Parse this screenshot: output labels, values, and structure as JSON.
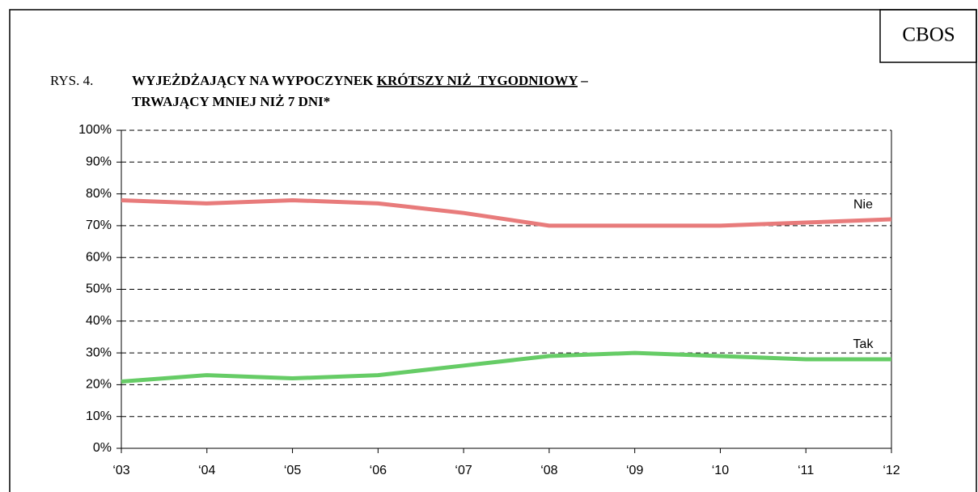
{
  "chart_data": {
    "type": "line",
    "badge": "CBOS",
    "figure_label": "RYS. 4.",
    "title_parts": [
      "WYJEŻDŻAJĄCY NA WYPOCZYNEK ",
      "KRÓTSZY NIŻ  TYGODNIOWY",
      " –"
    ],
    "title_line2": "TRWAJĄCY MNIEJ NIŻ 7 DNI*",
    "categories": [
      "‘03",
      "‘04",
      "‘05",
      "‘06",
      "‘07",
      "‘08",
      "‘09",
      "‘10",
      "‘11",
      "‘12"
    ],
    "series": [
      {
        "name": "Nie",
        "color": "#e87b7b",
        "values": [
          78,
          77,
          78,
          77,
          74,
          70,
          70,
          70,
          71,
          72
        ]
      },
      {
        "name": "Tak",
        "color": "#66cc66",
        "values": [
          21,
          23,
          22,
          23,
          26,
          29,
          30,
          29,
          28,
          28
        ]
      }
    ],
    "ylim": [
      0,
      100
    ],
    "yticks": [
      {
        "value": 0,
        "label": "0%"
      },
      {
        "value": 10,
        "label": "10%"
      },
      {
        "value": 20,
        "label": "20%"
      },
      {
        "value": 30,
        "label": "30%"
      },
      {
        "value": 40,
        "label": "40%"
      },
      {
        "value": 50,
        "label": "50%"
      },
      {
        "value": 60,
        "label": "60%"
      },
      {
        "value": 70,
        "label": "70%"
      },
      {
        "value": 80,
        "label": "80%"
      },
      {
        "value": 90,
        "label": "90%"
      },
      {
        "value": 100,
        "label": "100%"
      }
    ],
    "grid": true
  }
}
